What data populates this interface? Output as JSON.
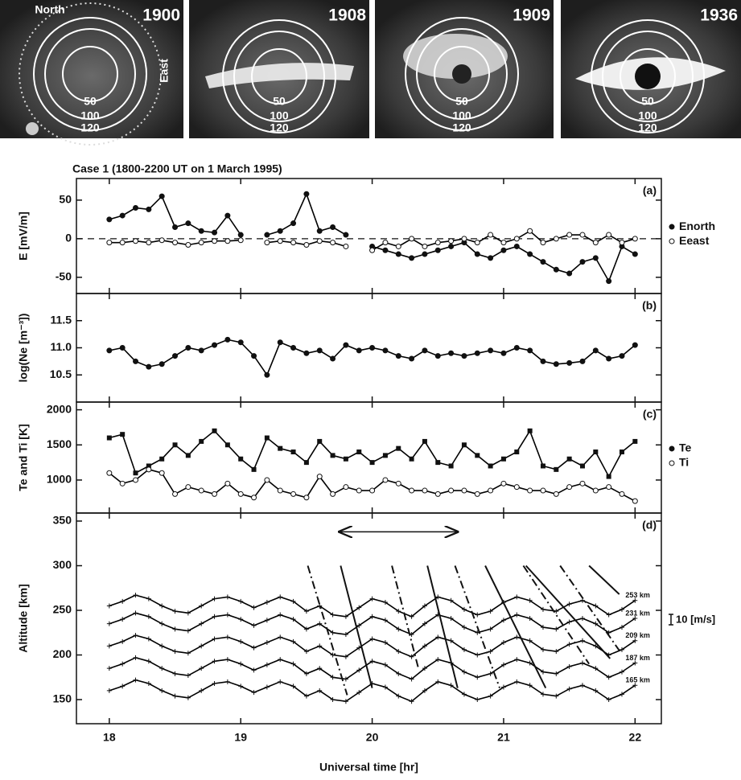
{
  "sky_labels": {
    "north": "North",
    "east": "East"
  },
  "sky_images": [
    {
      "year": "1900",
      "rings": [
        "50",
        "100",
        "120"
      ]
    },
    {
      "year": "1908",
      "rings": [
        "50",
        "100",
        "120"
      ]
    },
    {
      "year": "1909",
      "rings": [
        "50",
        "100",
        "120"
      ]
    },
    {
      "year": "1936",
      "rings": [
        "50",
        "100",
        "120"
      ]
    }
  ],
  "chart_data": [
    {
      "type": "line",
      "title": "Case 1 (1800-2200 UT on 1 March 1995)",
      "panel_label": "(a)",
      "ylabel": "E [mV/m]",
      "ylim": [
        -71,
        78
      ],
      "yticks": [
        -50,
        0,
        50
      ],
      "reference_line": 0,
      "legend": true,
      "x": [
        18,
        18.1,
        18.2,
        18.3,
        18.4,
        18.5,
        18.6,
        18.7,
        18.8,
        18.9,
        19,
        19.1,
        19.2,
        19.3,
        19.4,
        19.5,
        19.6,
        19.7,
        19.8,
        19.9,
        20,
        20.1,
        20.2,
        20.3,
        20.4,
        20.5,
        20.6,
        20.7,
        20.8,
        20.9,
        21,
        21.1,
        21.2,
        21.3,
        21.4,
        21.5,
        21.6,
        21.7,
        21.8,
        21.9,
        22
      ],
      "series": [
        {
          "name": "Enorth",
          "color": "#000000",
          "marker": "filled-circle",
          "values": [
            25,
            30,
            40,
            38,
            55,
            15,
            20,
            10,
            8,
            30,
            5,
            null,
            5,
            10,
            20,
            58,
            10,
            15,
            5,
            null,
            -10,
            -15,
            -20,
            -25,
            -20,
            -15,
            -10,
            -5,
            -20,
            -25,
            -15,
            -10,
            -20,
            -30,
            -40,
            -45,
            -30,
            -25,
            -55,
            -10,
            -20
          ]
        },
        {
          "name": "Eeast",
          "color": "#000000",
          "marker": "open-circle",
          "values": [
            -5,
            -5,
            -3,
            -5,
            -2,
            -5,
            -8,
            -5,
            -3,
            -3,
            -2,
            null,
            -5,
            -3,
            -5,
            -8,
            -3,
            -5,
            -10,
            null,
            -15,
            -5,
            -10,
            0,
            -10,
            -5,
            -3,
            0,
            -5,
            5,
            -5,
            0,
            10,
            -5,
            0,
            5,
            5,
            -5,
            5,
            -5,
            0
          ]
        }
      ]
    },
    {
      "type": "line",
      "panel_label": "(b)",
      "ylabel": "log(Ne [m⁻³])",
      "ylim": [
        10.0,
        12.0
      ],
      "yticks": [
        {
          "value": 10.5,
          "label": "10.5"
        },
        {
          "value": 11,
          "label": "11.0"
        },
        {
          "value": 11.5,
          "label": "11.5"
        }
      ],
      "legend": false,
      "x": [
        18,
        18.1,
        18.2,
        18.3,
        18.4,
        18.5,
        18.6,
        18.7,
        18.8,
        18.9,
        19,
        19.1,
        19.2,
        19.3,
        19.4,
        19.5,
        19.6,
        19.7,
        19.8,
        19.9,
        20,
        20.1,
        20.2,
        20.3,
        20.4,
        20.5,
        20.6,
        20.7,
        20.8,
        20.9,
        21,
        21.1,
        21.2,
        21.3,
        21.4,
        21.5,
        21.6,
        21.7,
        21.8,
        21.9,
        22
      ],
      "series": [
        {
          "color": "#000000",
          "marker": "filled-circle",
          "values": [
            10.95,
            11.0,
            10.75,
            10.65,
            10.7,
            10.85,
            11.0,
            10.95,
            11.05,
            11.15,
            11.1,
            10.85,
            10.5,
            11.1,
            11.0,
            10.9,
            10.95,
            10.8,
            11.05,
            10.95,
            11.0,
            10.95,
            10.85,
            10.8,
            10.95,
            10.85,
            10.9,
            10.85,
            10.9,
            10.95,
            10.9,
            11.0,
            10.95,
            10.75,
            10.7,
            10.72,
            10.75,
            10.95,
            10.8,
            10.85,
            11.05
          ]
        }
      ]
    },
    {
      "type": "line",
      "panel_label": "(c)",
      "ylabel": "Te and Ti [K]",
      "ylim": [
        530,
        2110
      ],
      "yticks": [
        1000,
        1500,
        2000
      ],
      "legend": true,
      "x": [
        18,
        18.1,
        18.2,
        18.3,
        18.4,
        18.5,
        18.6,
        18.7,
        18.8,
        18.9,
        19,
        19.1,
        19.2,
        19.3,
        19.4,
        19.5,
        19.6,
        19.7,
        19.8,
        19.9,
        20,
        20.1,
        20.2,
        20.3,
        20.4,
        20.5,
        20.6,
        20.7,
        20.8,
        20.9,
        21,
        21.1,
        21.2,
        21.3,
        21.4,
        21.5,
        21.6,
        21.7,
        21.8,
        21.9,
        22
      ],
      "series": [
        {
          "name": "Te",
          "color": "#000000",
          "marker": "filled-square",
          "values": [
            1600,
            1650,
            1100,
            1200,
            1300,
            1500,
            1350,
            1550,
            1700,
            1500,
            1300,
            1150,
            1600,
            1450,
            1400,
            1250,
            1550,
            1350,
            1300,
            1400,
            1250,
            1350,
            1450,
            1300,
            1550,
            1250,
            1200,
            1500,
            1350,
            1200,
            1300,
            1400,
            1700,
            1200,
            1150,
            1300,
            1200,
            1400,
            1050,
            1400,
            1550
          ]
        },
        {
          "name": "Ti",
          "color": "#000000",
          "marker": "open-circle",
          "values": [
            1100,
            950,
            1000,
            1150,
            1100,
            800,
            900,
            850,
            800,
            950,
            800,
            750,
            1000,
            850,
            800,
            750,
            1050,
            800,
            900,
            850,
            850,
            1000,
            950,
            850,
            850,
            800,
            850,
            850,
            800,
            850,
            950,
            900,
            850,
            850,
            800,
            900,
            950,
            850,
            900,
            800,
            700
          ]
        }
      ]
    },
    {
      "type": "line",
      "panel_label": "(d)",
      "ylabel": "Altitude [km]",
      "xlabel": "Universal time [hr]",
      "ylim": [
        123,
        359
      ],
      "yticks": [
        150,
        200,
        250,
        300,
        350
      ],
      "xlim": [
        17.75,
        22.2
      ],
      "xticks": [
        18,
        19,
        20,
        21,
        22
      ],
      "legend": false,
      "scale_bar_label": "10 [m/s]",
      "arrow": {
        "x": [
          19.75,
          20.65
        ],
        "y": 338
      },
      "x": [
        18,
        18.1,
        18.2,
        18.3,
        18.4,
        18.5,
        18.6,
        18.7,
        18.8,
        18.9,
        19,
        19.1,
        19.2,
        19.3,
        19.4,
        19.5,
        19.6,
        19.7,
        19.8,
        19.9,
        20,
        20.1,
        20.2,
        20.3,
        20.4,
        20.5,
        20.6,
        20.7,
        20.8,
        20.9,
        21,
        21.1,
        21.2,
        21.3,
        21.4,
        21.5,
        21.6,
        21.7,
        21.8,
        21.9,
        22
      ],
      "series": [
        {
          "name": "165 km",
          "color": "#000000",
          "marker": "plus",
          "values": [
            160,
            165,
            172,
            168,
            160,
            154,
            152,
            160,
            168,
            170,
            165,
            158,
            164,
            170,
            165,
            154,
            160,
            150,
            148,
            158,
            168,
            164,
            154,
            148,
            160,
            170,
            166,
            156,
            150,
            154,
            164,
            170,
            166,
            156,
            154,
            162,
            166,
            160,
            150,
            156,
            166
          ]
        },
        {
          "name": "187 km",
          "color": "#000000",
          "marker": "plus",
          "values": [
            185,
            190,
            197,
            193,
            185,
            179,
            177,
            185,
            193,
            195,
            190,
            183,
            189,
            195,
            190,
            179,
            185,
            175,
            173,
            183,
            193,
            189,
            179,
            173,
            185,
            195,
            191,
            181,
            175,
            179,
            189,
            195,
            191,
            181,
            179,
            187,
            191,
            185,
            175,
            181,
            191
          ]
        },
        {
          "name": "209 km",
          "color": "#000000",
          "marker": "plus",
          "values": [
            210,
            215,
            222,
            218,
            210,
            204,
            202,
            210,
            218,
            220,
            215,
            208,
            214,
            220,
            215,
            204,
            210,
            200,
            198,
            208,
            218,
            214,
            204,
            198,
            210,
            220,
            216,
            206,
            200,
            204,
            214,
            220,
            216,
            206,
            204,
            212,
            216,
            210,
            200,
            206,
            216
          ]
        },
        {
          "name": "231 km",
          "color": "#000000",
          "marker": "plus",
          "values": [
            235,
            240,
            247,
            243,
            235,
            229,
            227,
            235,
            243,
            245,
            240,
            233,
            239,
            245,
            240,
            229,
            235,
            225,
            223,
            233,
            243,
            239,
            229,
            223,
            235,
            245,
            241,
            231,
            225,
            229,
            239,
            245,
            241,
            231,
            229,
            237,
            241,
            235,
            225,
            231,
            241
          ]
        },
        {
          "name": "253 km",
          "color": "#000000",
          "marker": "plus",
          "values": [
            255,
            260,
            267,
            263,
            255,
            249,
            247,
            255,
            263,
            265,
            260,
            253,
            259,
            265,
            260,
            249,
            255,
            245,
            243,
            253,
            263,
            259,
            249,
            243,
            255,
            265,
            261,
            251,
            245,
            249,
            259,
            265,
            261,
            251,
            249,
            257,
            261,
            255,
            245,
            251,
            261
          ]
        }
      ],
      "fronts": [
        {
          "x": [
            19.51,
            19.81
          ],
          "values": [
            300,
            155
          ],
          "style": "dash-dot"
        },
        {
          "x": [
            19.76,
            20.0
          ],
          "values": [
            300,
            163
          ],
          "style": "solid"
        },
        {
          "x": [
            20.15,
            20.35
          ],
          "values": [
            300,
            186
          ],
          "style": "dash-dot"
        },
        {
          "x": [
            20.42,
            20.65
          ],
          "values": [
            300,
            163
          ],
          "style": "solid"
        },
        {
          "x": [
            20.63,
            20.97
          ],
          "values": [
            300,
            163
          ],
          "style": "dash-dot"
        },
        {
          "x": [
            20.86,
            21.32
          ],
          "values": [
            300,
            163
          ],
          "style": "solid"
        },
        {
          "x": [
            21.15,
            21.65
          ],
          "values": [
            300,
            190
          ],
          "style": "dash-dot"
        },
        {
          "x": [
            21.17,
            21.81
          ],
          "values": [
            300,
            196
          ],
          "style": "solid"
        },
        {
          "x": [
            21.43,
            21.88
          ],
          "values": [
            300,
            205
          ],
          "style": "dash-dot"
        },
        {
          "x": [
            21.65,
            21.88
          ],
          "values": [
            300,
            268
          ],
          "style": "solid"
        }
      ]
    }
  ]
}
